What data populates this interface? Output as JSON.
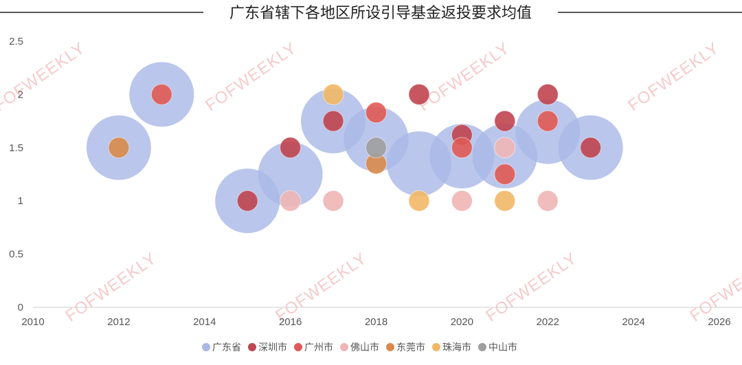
{
  "chart_data": {
    "type": "scatter",
    "title": "广东省辖下各地区所设引导基金返投要求均值",
    "xlabel": "",
    "ylabel": "",
    "xlim": [
      2010,
      2026
    ],
    "ylim": [
      0,
      2.5
    ],
    "x_ticks": [
      "2010",
      "2012",
      "2014",
      "2016",
      "2018",
      "2020",
      "2022",
      "2024",
      "2026"
    ],
    "y_ticks": [
      "0",
      "0.5",
      "1",
      "1.5",
      "2",
      "2.5"
    ],
    "grid": false,
    "legend_position": "bottom",
    "watermark": "FOFWEEKLY",
    "series": [
      {
        "name": "广东省",
        "color": "#a9b8e6",
        "size": "large",
        "points": [
          [
            2012,
            1.5
          ],
          [
            2013,
            2.0
          ],
          [
            2015,
            1.0
          ],
          [
            2016,
            1.25
          ],
          [
            2017,
            1.75
          ],
          [
            2018,
            1.58
          ],
          [
            2019,
            1.35
          ],
          [
            2020,
            1.42
          ],
          [
            2021,
            1.42
          ],
          [
            2022,
            1.65
          ],
          [
            2023,
            1.5
          ]
        ]
      },
      {
        "name": "深圳市",
        "color": "#c0444f",
        "size": "small",
        "points": [
          [
            2015,
            1.0
          ],
          [
            2016,
            1.5
          ],
          [
            2017,
            1.75
          ],
          [
            2019,
            2.0
          ],
          [
            2020,
            1.62
          ],
          [
            2021,
            1.75
          ],
          [
            2022,
            2.0
          ],
          [
            2023,
            1.5
          ]
        ]
      },
      {
        "name": "广州市",
        "color": "#e05a55",
        "size": "small",
        "points": [
          [
            2013,
            2.0
          ],
          [
            2018,
            1.83
          ],
          [
            2020,
            1.5
          ],
          [
            2021,
            1.25
          ],
          [
            2022,
            1.75
          ]
        ]
      },
      {
        "name": "佛山市",
        "color": "#f0b5b5",
        "size": "small",
        "points": [
          [
            2016,
            1.0
          ],
          [
            2017,
            1.0
          ],
          [
            2020,
            1.0
          ],
          [
            2021,
            1.5
          ],
          [
            2022,
            1.0
          ]
        ]
      },
      {
        "name": "东莞市",
        "color": "#d9894a",
        "size": "small",
        "points": [
          [
            2012,
            1.5
          ],
          [
            2018,
            1.35
          ]
        ]
      },
      {
        "name": "珠海市",
        "color": "#f2b766",
        "size": "small",
        "points": [
          [
            2017,
            2.0
          ],
          [
            2019,
            1.0
          ],
          [
            2021,
            1.0
          ]
        ]
      },
      {
        "name": "中山市",
        "color": "#9e9e9e",
        "size": "small",
        "points": [
          [
            2018,
            1.5
          ]
        ]
      }
    ]
  }
}
